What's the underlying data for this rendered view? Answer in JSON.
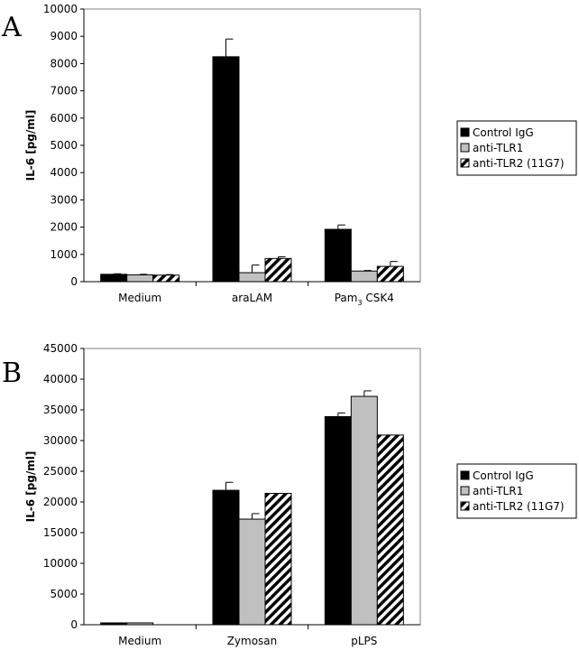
{
  "colors": {
    "control": "#000000",
    "tlr1": "#c0c0c0",
    "tlr2": "hatch"
  },
  "chart_data": [
    {
      "type": "bar",
      "panel": "A",
      "ylabel": "IL-6 [pg/ml]",
      "ylim": [
        0,
        10000
      ],
      "yticks": [
        0,
        1000,
        2000,
        3000,
        4000,
        5000,
        6000,
        7000,
        8000,
        9000,
        10000
      ],
      "ytick_labels": [
        "0",
        "1000",
        "2000",
        "3000",
        "4000",
        "5000",
        "6000",
        "7000",
        "8000",
        "9000",
        "10000"
      ],
      "categories": [
        {
          "label": "Medium",
          "sub": "",
          "rest": ""
        },
        {
          "label": "araLAM",
          "sub": "",
          "rest": ""
        },
        {
          "label": "Pam",
          "sub": "3",
          "rest": " CSK4"
        }
      ],
      "series": [
        {
          "name": "Control IgG",
          "values": [
            270,
            8250,
            1920
          ],
          "errors": [
            20,
            650,
            160
          ]
        },
        {
          "name": "anti-TLR1",
          "values": [
            250,
            330,
            390
          ],
          "errors": [
            20,
            280,
            20
          ]
        },
        {
          "name": "anti-TLR2 (11G7)",
          "values": [
            240,
            850,
            560
          ],
          "errors": [
            20,
            60,
            180
          ]
        }
      ],
      "legend": "right"
    },
    {
      "type": "bar",
      "panel": "B",
      "ylabel": "IL-6 [pg/ml]",
      "ylim": [
        0,
        45000
      ],
      "yticks": [
        0,
        5000,
        10000,
        15000,
        20000,
        25000,
        30000,
        35000,
        40000,
        45000
      ],
      "ytick_labels": [
        "0",
        "5000",
        "10000",
        "15000",
        "20000",
        "25000",
        "30000",
        "35000",
        "40000",
        "45000"
      ],
      "categories": [
        {
          "label": "Medium",
          "sub": "",
          "rest": ""
        },
        {
          "label": "Zymosan",
          "sub": "",
          "rest": ""
        },
        {
          "label": "pLPS",
          "sub": "",
          "rest": ""
        }
      ],
      "series": [
        {
          "name": "Control IgG",
          "values": [
            300,
            21900,
            33900
          ],
          "errors": [
            0,
            1300,
            600
          ]
        },
        {
          "name": "anti-TLR1",
          "values": [
            300,
            17200,
            37200
          ],
          "errors": [
            0,
            900,
            900
          ]
        },
        {
          "name": "anti-TLR2 (11G7)",
          "values": [
            0,
            21400,
            30900
          ],
          "errors": [
            0,
            0,
            0
          ]
        }
      ],
      "legend": "right"
    }
  ]
}
